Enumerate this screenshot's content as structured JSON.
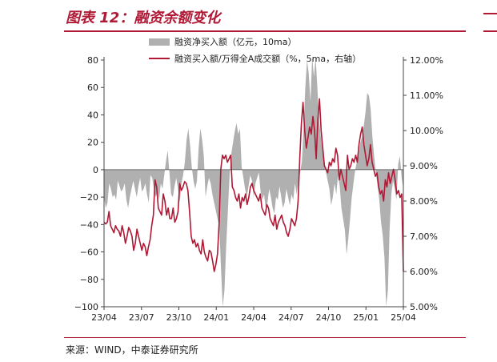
{
  "header": {
    "title": "图表 12：融资余额变化"
  },
  "footer": {
    "source": "来源：WIND，中泰证券研究所"
  },
  "chart_data": {
    "type": "area+line",
    "legend_placement": "top-center",
    "grid": false,
    "x_ticks": [
      "23/04",
      "23/07",
      "23/10",
      "24/01",
      "24/04",
      "24/07",
      "24/10",
      "25/01",
      "25/04"
    ],
    "y_left": {
      "ylim": [
        -100,
        80
      ],
      "ticks": [
        "−100",
        "−80",
        "−60",
        "−40",
        "−20",
        "0",
        "20",
        "40",
        "60",
        "80"
      ]
    },
    "y_right": {
      "ylim": [
        5,
        12
      ],
      "ticks": [
        "5.00%",
        "6.00%",
        "7.00%",
        "8.00%",
        "9.00%",
        "10.00%",
        "11.00%",
        "12.00%"
      ]
    },
    "series": [
      {
        "name": "融资净买入额（亿元，10ma）",
        "type": "area",
        "axis": "left",
        "color": "#b0b0b0",
        "values": [
          -20,
          -28,
          -24,
          -10,
          -14,
          -20,
          -18,
          -22,
          -8,
          -12,
          -16,
          -14,
          -10,
          -22,
          -28,
          -20,
          -14,
          -8,
          -14,
          -20,
          -12,
          -6,
          -16,
          -14,
          -10,
          -18,
          -24,
          -4,
          -6,
          -14,
          -20,
          -16,
          -22,
          -10,
          -14,
          -4,
          6,
          14,
          -2,
          -18,
          -20,
          -12,
          -6,
          -14,
          -24,
          -10,
          -4,
          6,
          22,
          30,
          18,
          2,
          -8,
          -14,
          -8,
          16,
          30,
          22,
          10,
          -20,
          -12,
          -6,
          -10,
          -18,
          -24,
          -30,
          -36,
          -42,
          -72,
          -100,
          -88,
          -56,
          -30,
          -4,
          12,
          20,
          28,
          34,
          26,
          30,
          2,
          -6,
          -14,
          -20,
          -12,
          -4,
          -8,
          -20,
          -10,
          -6,
          -2,
          -16,
          -22,
          -18,
          -28,
          -24,
          -14,
          -20,
          -28,
          -32,
          -20,
          -22,
          -12,
          -20,
          -28,
          -24,
          -14,
          -20,
          -26,
          -18,
          -22,
          -10,
          -18,
          -8,
          -2,
          6,
          30,
          60,
          80,
          70,
          50,
          82,
          68,
          82,
          60,
          36,
          24,
          14,
          6,
          -2,
          -8,
          -14,
          -26,
          -20,
          -10,
          -18,
          -4,
          -12,
          -28,
          -36,
          -44,
          -62,
          -50,
          -36,
          -20,
          -10,
          0,
          6,
          10,
          20,
          24,
          32,
          42,
          56,
          54,
          44,
          24,
          10,
          -2,
          -12,
          -22,
          -38,
          -48,
          -64,
          -100,
          -88,
          -44,
          -18,
          -8,
          -14,
          -22,
          4,
          10,
          -6,
          -14
        ]
      },
      {
        "name": "融资买入额/万得全A成交额（%，5ma，右轴）",
        "type": "line",
        "axis": "right",
        "color": "#b01935",
        "values": [
          7.4,
          7.35,
          7.4,
          7.7,
          7.3,
          7.2,
          7.1,
          7.3,
          7.2,
          7.15,
          7.0,
          7.3,
          7.1,
          6.8,
          7.0,
          7.25,
          7.15,
          7.0,
          6.6,
          6.8,
          7.2,
          7.0,
          6.8,
          6.6,
          6.8,
          6.7,
          6.45,
          6.7,
          6.9,
          7.3,
          7.6,
          8.6,
          8.4,
          7.8,
          7.7,
          7.6,
          8.2,
          8.0,
          7.6,
          7.8,
          7.5,
          7.5,
          7.8,
          7.4,
          7.5,
          7.7,
          8.5,
          8.3,
          8.4,
          8.55,
          8.5,
          8.3,
          7.7,
          7.0,
          6.8,
          6.9,
          6.7,
          6.8,
          6.6,
          6.5,
          6.9,
          6.55,
          6.4,
          6.3,
          6.6,
          6.55,
          6.3,
          6.0,
          6.2,
          6.5,
          7.4,
          8.9,
          9.3,
          9.2,
          9.3,
          9.1,
          9.2,
          9.3,
          8.4,
          8.3,
          8.1,
          8.0,
          8.2,
          7.8,
          8.1,
          8.0,
          8.2,
          7.9,
          8.1,
          8.4,
          8.5,
          8.3,
          8.2,
          8.1,
          8.0,
          8.2,
          7.8,
          7.7,
          7.6,
          7.9,
          7.8,
          7.5,
          7.4,
          7.3,
          7.6,
          7.2,
          7.4,
          7.5,
          7.6,
          7.4,
          7.3,
          7.1,
          7.0,
          7.2,
          7.5,
          7.4,
          7.3,
          7.5,
          8.0,
          9.2,
          10.2,
          10.8,
          10.0,
          9.5,
          9.8,
          10.1,
          9.9,
          10.4,
          10.0,
          9.2,
          10.3,
          10.9,
          10.0,
          9.5,
          9.0,
          8.9,
          8.8,
          9.1,
          9.0,
          9.2,
          9.1,
          9.5,
          9.3,
          8.6,
          8.9,
          8.7,
          8.5,
          8.3,
          9.3,
          8.9,
          9.0,
          9.2,
          9.1,
          9.3,
          9.1,
          9.6,
          9.9,
          10.1,
          9.6,
          9.3,
          9.0,
          9.2,
          9.6,
          9.1,
          8.9,
          8.7,
          8.8,
          8.4,
          8.2,
          8.3,
          8.0,
          8.6,
          8.4,
          8.8,
          8.5,
          8.7,
          8.9,
          8.6,
          8.2,
          8.3,
          8.1,
          8.2,
          6.0
        ]
      }
    ]
  }
}
